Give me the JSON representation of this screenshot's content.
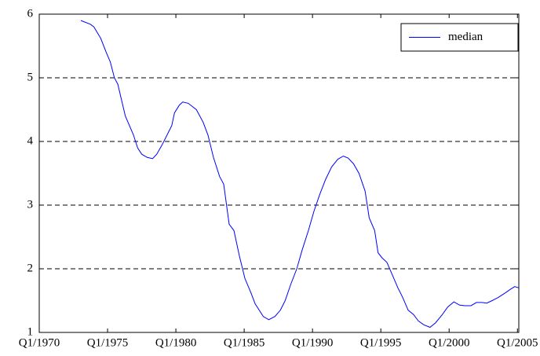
{
  "chart_data": {
    "type": "line",
    "x": [
      1973.05,
      1973.75,
      1974.0,
      1974.5,
      1974.9,
      1975.2,
      1975.5,
      1975.75,
      1976.3,
      1976.9,
      1977.2,
      1977.5,
      1977.9,
      1978.3,
      1978.6,
      1979.0,
      1979.4,
      1979.7,
      1979.9,
      1980.25,
      1980.5,
      1980.9,
      1981.5,
      1982.0,
      1982.35,
      1982.75,
      1983.2,
      1983.5,
      1983.9,
      1984.25,
      1984.65,
      1985.05,
      1985.5,
      1985.8,
      1986.4,
      1986.8,
      1987.25,
      1987.65,
      1988.0,
      1988.4,
      1988.85,
      1989.25,
      1989.7,
      1990.1,
      1990.5,
      1990.95,
      1991.4,
      1991.85,
      1992.25,
      1992.6,
      1993.0,
      1993.4,
      1993.85,
      1994.15,
      1994.55,
      1994.8,
      1995.1,
      1995.45,
      1995.85,
      1996.25,
      1996.6,
      1997.0,
      1997.4,
      1997.75,
      1998.15,
      1998.6,
      1999.0,
      1999.5,
      1999.9,
      2000.35,
      2000.75,
      2001.15,
      2001.6,
      2002.0,
      2002.4,
      2002.75,
      2003.15,
      2003.6,
      2004.1,
      2004.5,
      2004.8,
      2005.1
    ],
    "series": [
      {
        "name": "median",
        "color": "#0000ff",
        "values": [
          5.9,
          5.84,
          5.8,
          5.62,
          5.4,
          5.25,
          5.0,
          4.9,
          4.4,
          4.1,
          3.9,
          3.8,
          3.75,
          3.73,
          3.8,
          3.95,
          4.12,
          4.25,
          4.45,
          4.57,
          4.62,
          4.6,
          4.5,
          4.3,
          4.1,
          3.75,
          3.45,
          3.33,
          2.7,
          2.6,
          2.2,
          1.85,
          1.62,
          1.45,
          1.25,
          1.2,
          1.25,
          1.35,
          1.5,
          1.75,
          2.0,
          2.3,
          2.6,
          2.9,
          3.15,
          3.4,
          3.6,
          3.72,
          3.77,
          3.74,
          3.65,
          3.5,
          3.22,
          2.8,
          2.6,
          2.25,
          2.17,
          2.1,
          1.9,
          1.7,
          1.55,
          1.35,
          1.28,
          1.18,
          1.12,
          1.08,
          1.15,
          1.28,
          1.4,
          1.48,
          1.43,
          1.42,
          1.42,
          1.47,
          1.47,
          1.46,
          1.5,
          1.55,
          1.62,
          1.68,
          1.72,
          1.7
        ]
      }
    ],
    "xlim": [
      1970,
      2005.1
    ],
    "xticks": [
      {
        "value": 1970,
        "label": "Q1/1970"
      },
      {
        "value": 1975,
        "label": "Q1/1975"
      },
      {
        "value": 1980,
        "label": "Q1/1980"
      },
      {
        "value": 1985,
        "label": "Q1/1985"
      },
      {
        "value": 1990,
        "label": "Q1/1990"
      },
      {
        "value": 1995,
        "label": "Q1/1995"
      },
      {
        "value": 2000,
        "label": "Q1/2000"
      },
      {
        "value": 2005,
        "label": "Q1/2005"
      }
    ],
    "ylim": [
      1,
      6
    ],
    "yticks": [
      1,
      2,
      3,
      4,
      5,
      6
    ],
    "grid": true,
    "legend": "top-right"
  }
}
